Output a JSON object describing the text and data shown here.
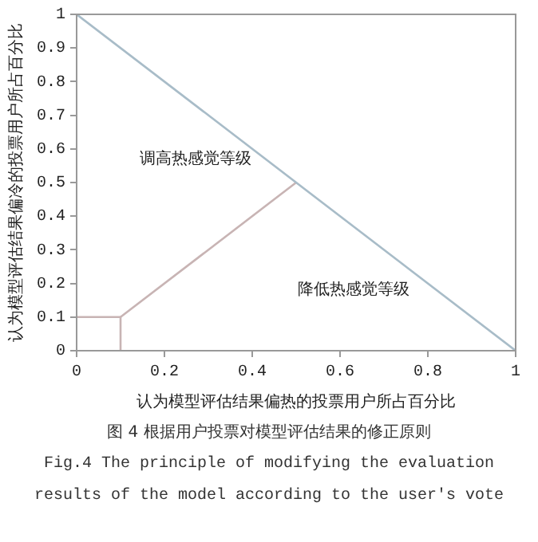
{
  "chart_data": {
    "type": "line",
    "xlabel": "认为模型评估结果偏热的投票用户所占百分比",
    "ylabel": "认为模型评估结果偏冷的投票用户所占百分比",
    "series": [
      {
        "color": "#a8bcc8",
        "x": [
          0,
          1
        ],
        "values": [
          1,
          0
        ]
      },
      {
        "color": "#c8b4b4",
        "x": [
          0,
          0.1,
          0.1
        ],
        "values": [
          0.1,
          0.1,
          0
        ]
      },
      {
        "color": "#c8b4b4",
        "x": [
          0.1,
          0.5
        ],
        "values": [
          0.1,
          0.5
        ]
      }
    ],
    "xlim": [
      0,
      1
    ],
    "xticks": [
      0,
      0.2,
      0.4,
      0.6,
      0.8,
      1
    ],
    "ylim": [
      0,
      1
    ],
    "yticks": [
      0,
      0.1,
      0.2,
      0.3,
      0.4,
      0.5,
      0.6,
      0.7,
      0.8,
      0.9,
      1
    ],
    "grid": false,
    "legend": false,
    "marker": "none",
    "line_style": "solid",
    "annotations": [
      "调高热感觉等级",
      "降低热感觉等级",
      "图 4 根据用户投票对模型评估结果的修正原则",
      "Fig.4 The principle of modifying the evaluation results of the model according to the user's vote"
    ]
  }
}
